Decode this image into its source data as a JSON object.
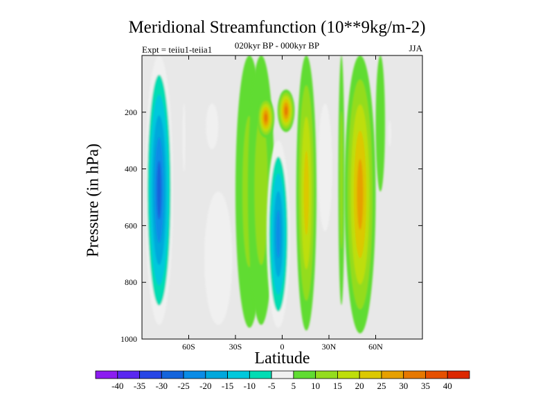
{
  "chart_data": {
    "type": "contour",
    "title": "Meridional Streamfunction (10**9kg/m-2)",
    "subtitle": "020kyr BP - 000kyr BP",
    "left_string": "Expt = teiiu1-teiia1",
    "right_string": "JJA",
    "xlabel": "Latitude",
    "ylabel": "Pressure (in hPa)",
    "x_axis": {
      "range": [
        -90,
        90
      ],
      "ticks": [
        -60,
        -30,
        0,
        30,
        60
      ],
      "tick_labels": [
        "60S",
        "30S",
        "0",
        "30N",
        "60N"
      ]
    },
    "y_axis": {
      "range": [
        0,
        1000
      ],
      "reversed": true,
      "ticks": [
        200,
        400,
        600,
        800,
        1000
      ],
      "tick_labels": [
        "200",
        "400",
        "600",
        "800",
        "1000"
      ]
    },
    "background_color": "#e8e8e8",
    "levels": [
      -40,
      -35,
      -30,
      -25,
      -20,
      -15,
      -10,
      -5,
      5,
      10,
      15,
      20,
      25,
      30,
      35,
      40
    ],
    "colorbar_colors": [
      "#8c1cf0",
      "#5a28f0",
      "#2846e6",
      "#1464dc",
      "#0a8ce6",
      "#00a8dc",
      "#00c8dc",
      "#00dcb4",
      "#f0f0f0",
      "#60dc32",
      "#94dc1e",
      "#bede0a",
      "#dcc800",
      "#e6a000",
      "#e67800",
      "#e65000",
      "#dc2800"
    ],
    "features": [
      {
        "id": "sh-polar-cell",
        "lat": [
          -88,
          -70
        ],
        "plev": [
          0,
          950
        ],
        "peak": -30
      },
      {
        "id": "sh-midlat-1",
        "lat": [
          -64,
          -62
        ],
        "plev": [
          170,
          410
        ],
        "peak": -5
      },
      {
        "id": "sh-midlat-2",
        "lat": [
          -49,
          -41
        ],
        "plev": [
          170,
          330
        ],
        "peak": -5
      },
      {
        "id": "sh-midlat-3",
        "lat": [
          -50,
          -32
        ],
        "plev": [
          480,
          950
        ],
        "peak": -5
      },
      {
        "id": "sh-subtropic-1",
        "lat": [
          -30,
          -12
        ],
        "plev": [
          0,
          960
        ],
        "peak": 10
      },
      {
        "id": "sh-subtropic-2",
        "lat": [
          -22,
          -5
        ],
        "plev": [
          0,
          950
        ],
        "peak": 10
      },
      {
        "id": "upper-tropic-west",
        "lat": [
          -16,
          -5
        ],
        "plev": [
          150,
          290
        ],
        "peak": 30
      },
      {
        "id": "upper-tropic-east",
        "lat": [
          -3,
          8
        ],
        "plev": [
          120,
          270
        ],
        "peak": 30
      },
      {
        "id": "equatorial-low",
        "lat": [
          -10,
          5
        ],
        "plev": [
          300,
          960
        ],
        "peak": -25
      },
      {
        "id": "nh-subtropic",
        "lat": [
          9,
          22
        ],
        "plev": [
          0,
          970
        ],
        "peak": 20
      },
      {
        "id": "nh-midlat-1",
        "lat": [
          23,
          32
        ],
        "plev": [
          170,
          620
        ],
        "peak": -5
      },
      {
        "id": "nh-midlat-2",
        "lat": [
          36,
          40
        ],
        "plev": [
          0,
          880
        ],
        "peak": 10
      },
      {
        "id": "nh-storm-track",
        "lat": [
          40,
          60
        ],
        "plev": [
          0,
          980
        ],
        "peak": 25
      },
      {
        "id": "nh-polar-1",
        "lat": [
          60,
          66
        ],
        "plev": [
          0,
          480
        ],
        "peak": 5
      },
      {
        "id": "nh-polar-2",
        "lat": [
          68,
          70
        ],
        "plev": [
          230,
          320
        ],
        "peak": -5
      }
    ]
  }
}
